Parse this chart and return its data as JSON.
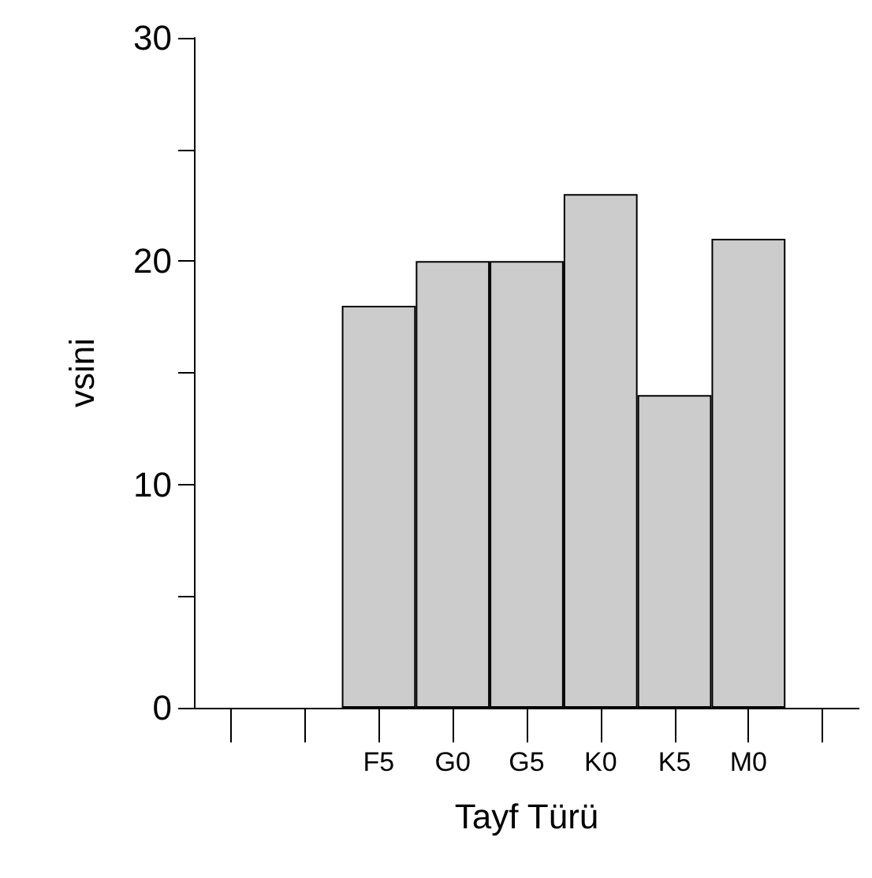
{
  "chart_data": {
    "type": "bar",
    "xlabel": "Tayf Türü",
    "ylabel": "vsini",
    "categories": [
      null,
      null,
      "F5",
      "G0",
      "G5",
      "K0",
      "K5",
      "M0",
      null
    ],
    "values": [
      null,
      null,
      18,
      20,
      20,
      23,
      14,
      21,
      null
    ],
    "color": "#cccccc",
    "ylim": [
      0,
      30
    ],
    "yticks": [
      0,
      {
        "value": 5,
        "label": null
      },
      10,
      {
        "value": 15,
        "label": null
      },
      20,
      {
        "value": 25,
        "label": null
      },
      30
    ],
    "grid": false
  }
}
